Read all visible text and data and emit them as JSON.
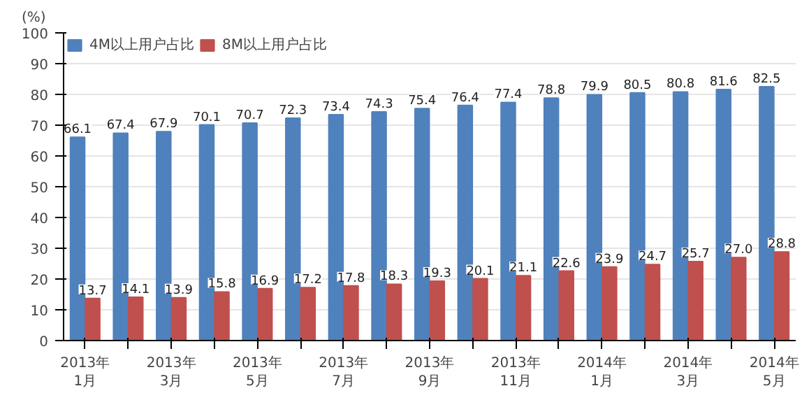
{
  "chart_data": {
    "type": "bar",
    "ylabel": "(%)",
    "categories": [
      "2013年\n1月",
      null,
      "2013年\n3月",
      null,
      "2013年\n5月",
      null,
      "2013年\n7月",
      null,
      "2013年\n9月",
      null,
      "2013年\n11月",
      null,
      "2014年\n1月",
      null,
      "2014年\n3月",
      null,
      "2014年\n5月"
    ],
    "series": [
      {
        "name": "4M以上用户占比",
        "color": "#4f81bd",
        "values": [
          66.1,
          67.4,
          67.9,
          70.1,
          70.7,
          72.3,
          73.4,
          74.3,
          75.4,
          76.4,
          77.4,
          78.8,
          79.9,
          80.5,
          80.8,
          81.6,
          82.5
        ],
        "value_labels": [
          "66.1",
          "67.4",
          "67.9",
          "70.1",
          "70.7",
          "72.3",
          "73.4",
          "74.3",
          "75.4",
          "76.4",
          "77.4",
          "78.8",
          "79.9",
          "80.5",
          "80.8",
          "81.6",
          "82.5"
        ]
      },
      {
        "name": "8M以上用户占比",
        "color": "#c0504d",
        "values": [
          13.7,
          14.1,
          13.9,
          15.8,
          16.9,
          17.2,
          17.8,
          18.3,
          19.3,
          20.1,
          21.1,
          22.6,
          23.9,
          24.7,
          25.7,
          27.0,
          28.8
        ],
        "value_labels": [
          "13.7",
          "14.1",
          "13.9",
          "15.8",
          "16.9",
          "17.2",
          "17.8",
          "18.3",
          "19.3",
          "20.1",
          "21.1",
          "22.6",
          "23.9",
          "24.7",
          "25.7",
          "27.0",
          "28.8"
        ]
      }
    ],
    "ylim": [
      0,
      100
    ],
    "yticks": [
      0,
      10,
      20,
      30,
      40,
      50,
      60,
      70,
      80,
      90,
      100
    ],
    "grid": "y",
    "legend": "top left"
  }
}
